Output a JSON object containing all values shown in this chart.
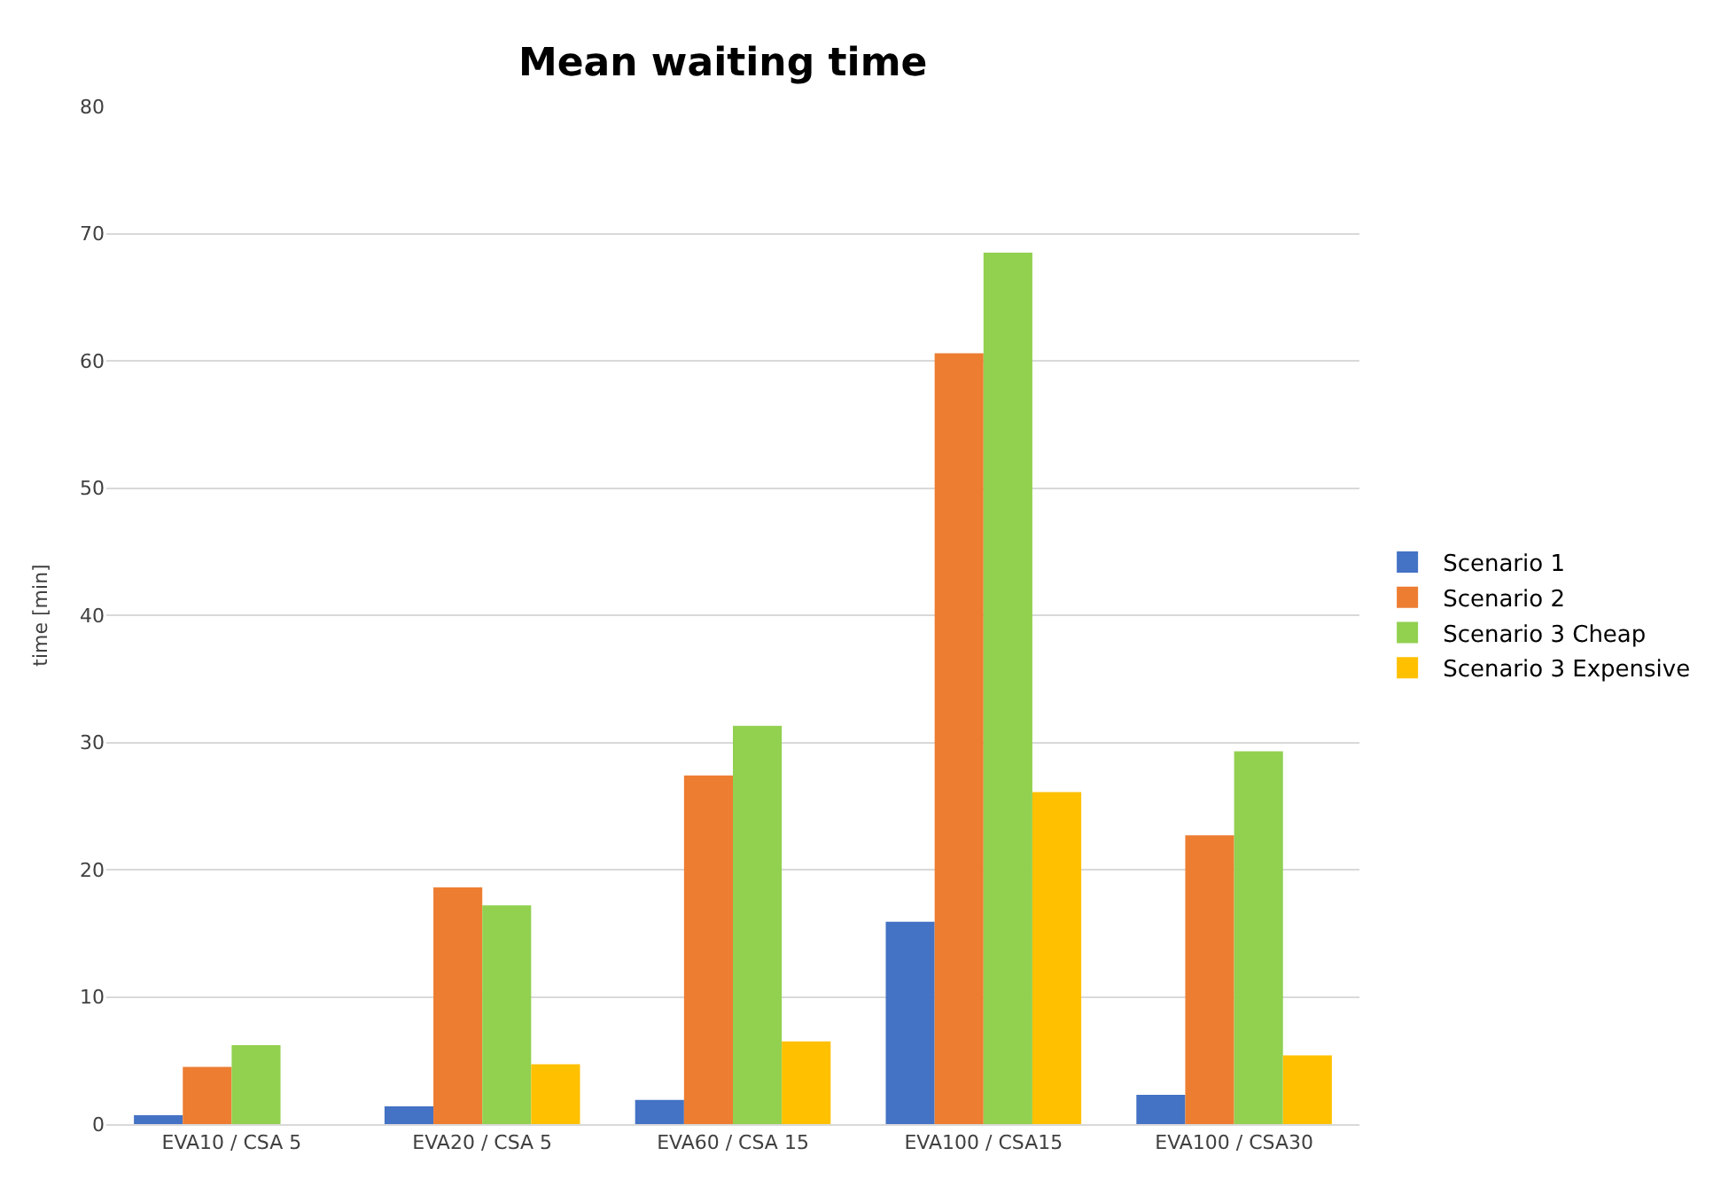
{
  "chart_data": {
    "type": "bar",
    "title": "Mean waiting time",
    "ylabel": "time [min]",
    "categories": [
      "EVA10 / CSA 5",
      "EVA20 / CSA 5",
      "EVA60 / CSA 15",
      "EVA100 / CSA15",
      "EVA100 / CSA30"
    ],
    "series": [
      {
        "name": "Scenario 1",
        "color": "#4472c4",
        "values": [
          0.7,
          1.4,
          1.9,
          15.9,
          2.3
        ]
      },
      {
        "name": "Scenario 2",
        "color": "#ed7d31",
        "values": [
          4.5,
          18.6,
          27.4,
          60.6,
          22.7
        ]
      },
      {
        "name": "Scenario 3 Cheap",
        "color": "#92d050",
        "values": [
          6.2,
          17.2,
          31.3,
          68.5,
          29.3
        ]
      },
      {
        "name": "Scenario 3 Expensive",
        "color": "#ffc000",
        "values": [
          0,
          4.7,
          6.5,
          26.1,
          5.4
        ]
      }
    ],
    "ylim": [
      0,
      80
    ],
    "yticks": [
      0,
      10,
      20,
      30,
      40,
      50,
      60,
      70,
      80
    ],
    "grid": "y",
    "legend": "right"
  }
}
